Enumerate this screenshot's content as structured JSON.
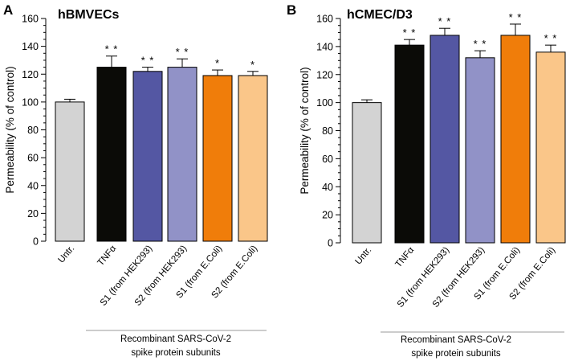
{
  "chart_data": [
    {
      "type": "bar",
      "panel": "A",
      "title": "hBMVECs",
      "ylabel": "Permeability (% of control)",
      "ylim": [
        0,
        160
      ],
      "yticks": [
        0,
        20,
        40,
        60,
        80,
        100,
        120,
        140,
        160
      ],
      "categories": [
        "Untr.",
        "TNFα",
        "S1 (from HEK293)",
        "S2 (from HEK293)",
        "S1 (from E.Coli)",
        "S2 (from E.Coli)"
      ],
      "values": [
        100,
        125,
        122,
        125,
        119,
        119
      ],
      "errors": [
        2,
        8,
        3,
        6,
        4,
        3
      ],
      "significance": [
        "",
        "* *",
        "* *",
        "* *",
        "*",
        "*"
      ],
      "colors": [
        "#d3d3d3",
        "#0b0b07",
        "#5457a3",
        "#9192c7",
        "#f07d0a",
        "#fac689"
      ],
      "group_label": [
        "Recombinant SARS-CoV-2",
        "spike protein subunits"
      ]
    },
    {
      "type": "bar",
      "panel": "B",
      "title": "hCMEC/D3",
      "ylabel": "Permeability (% of control)",
      "ylim": [
        0,
        160
      ],
      "yticks": [
        0,
        20,
        40,
        60,
        80,
        100,
        120,
        140,
        160
      ],
      "categories": [
        "Untr.",
        "TNFα",
        "S1 (from HEK293)",
        "S2 (from HEK293)",
        "S1 (from E.Coli)",
        "S2 (from E.Coli)"
      ],
      "values": [
        100,
        141,
        148,
        132,
        148,
        136
      ],
      "errors": [
        2,
        4,
        5,
        5,
        8,
        5
      ],
      "significance": [
        "",
        "* *",
        "* *",
        "* *",
        "* *",
        "* *"
      ],
      "colors": [
        "#d3d3d3",
        "#0b0b07",
        "#5457a3",
        "#9192c7",
        "#f07d0a",
        "#fac689"
      ],
      "group_label": [
        "Recombinant SARS-CoV-2",
        "spike protein subunits"
      ]
    }
  ]
}
